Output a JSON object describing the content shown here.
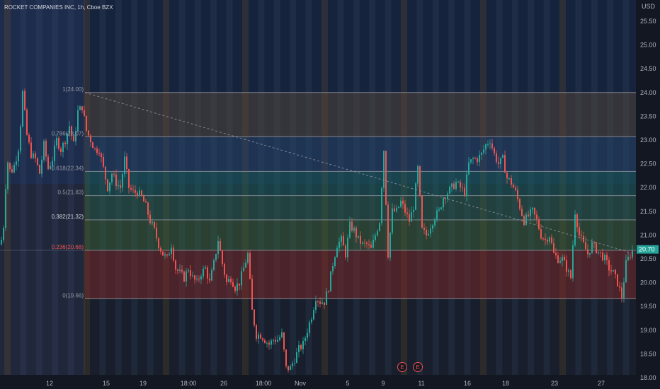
{
  "header": {
    "title": "ROCKET COMPANIES INC, 1h, Cboe BZX",
    "currency": "USD"
  },
  "colors": {
    "background": "#131722",
    "up": "#26a69a",
    "down": "#ef5350",
    "fib_line": "#9598a1",
    "trend": "#9598a1",
    "price_tag": "#26a69a"
  },
  "chart_data": {
    "type": "candlestick",
    "title": "ROCKET COMPANIES INC, 1h, Cboe BZX",
    "ylabel": "USD",
    "ylim": [
      18.0,
      25.8
    ],
    "y_ticks": [
      "25.50",
      "25.00",
      "24.50",
      "24.00",
      "23.50",
      "23.00",
      "22.50",
      "22.00",
      "21.50",
      "21.00",
      "20.50",
      "20.00",
      "19.50",
      "19.00",
      "18.50",
      "18.00"
    ],
    "x_ticks": [
      "12",
      "15",
      "19",
      "18:00",
      "26",
      "18:00",
      "Nov",
      "5",
      "9",
      "11",
      "16",
      "18",
      "23",
      "27"
    ],
    "last_price": "20.70",
    "fib_levels": [
      {
        "label": "1(24.00)",
        "value": 24.0
      },
      {
        "label": "0.786(23.07)",
        "value": 23.07
      },
      {
        "label": "0.618(22.34)",
        "value": 22.34
      },
      {
        "label": "0.5(21.83)",
        "value": 21.83
      },
      {
        "label": "0.382(21.32)",
        "value": 21.32
      },
      {
        "label": "0.236(20.68)",
        "value": 20.68
      },
      {
        "label": "0(19.66)",
        "value": 19.66
      }
    ],
    "earnings_markers": [
      "E",
      "E"
    ],
    "price_path": [
      [
        0,
        20.8
      ],
      [
        4,
        21.2
      ],
      [
        9,
        22.6
      ],
      [
        14,
        22.3
      ],
      [
        20,
        22.5
      ],
      [
        26,
        22.9
      ],
      [
        31,
        24.0
      ],
      [
        37,
        23.1
      ],
      [
        43,
        22.7
      ],
      [
        49,
        22.6
      ],
      [
        55,
        22.3
      ],
      [
        61,
        22.9
      ],
      [
        67,
        22.4
      ],
      [
        73,
        22.6
      ],
      [
        79,
        23.0
      ],
      [
        85,
        22.8
      ],
      [
        91,
        23.0
      ],
      [
        97,
        23.3
      ],
      [
        103,
        22.9
      ],
      [
        109,
        23.6
      ],
      [
        115,
        23.7
      ],
      [
        121,
        23.2
      ],
      [
        127,
        23.0
      ],
      [
        133,
        22.8
      ],
      [
        139,
        22.8
      ],
      [
        145,
        22.4
      ],
      [
        151,
        22.0
      ],
      [
        157,
        22.3
      ],
      [
        163,
        22.1
      ],
      [
        169,
        22.0
      ],
      [
        175,
        22.6
      ],
      [
        181,
        22.0
      ],
      [
        187,
        21.9
      ],
      [
        193,
        21.9
      ],
      [
        199,
        21.8
      ],
      [
        205,
        21.6
      ],
      [
        211,
        21.3
      ],
      [
        217,
        21.1
      ],
      [
        223,
        20.8
      ],
      [
        229,
        20.6
      ],
      [
        235,
        20.5
      ],
      [
        241,
        20.8
      ],
      [
        247,
        20.3
      ],
      [
        253,
        20.2
      ],
      [
        259,
        20.1
      ],
      [
        265,
        20.3
      ],
      [
        271,
        20.1
      ],
      [
        277,
        20.0
      ],
      [
        283,
        20.2
      ],
      [
        289,
        20.3
      ],
      [
        295,
        20.0
      ],
      [
        301,
        20.4
      ],
      [
        307,
        20.9
      ],
      [
        313,
        20.4
      ],
      [
        319,
        20.0
      ],
      [
        325,
        20.1
      ],
      [
        331,
        19.9
      ],
      [
        337,
        20.0
      ],
      [
        343,
        20.3
      ],
      [
        349,
        20.6
      ],
      [
        355,
        19.4
      ],
      [
        361,
        18.9
      ],
      [
        367,
        18.9
      ],
      [
        373,
        18.8
      ],
      [
        379,
        18.7
      ],
      [
        385,
        18.8
      ],
      [
        391,
        18.8
      ],
      [
        397,
        18.9
      ],
      [
        403,
        18.2
      ],
      [
        409,
        18.2
      ],
      [
        415,
        18.4
      ],
      [
        421,
        18.6
      ],
      [
        427,
        18.7
      ],
      [
        433,
        19.0
      ],
      [
        439,
        19.3
      ],
      [
        445,
        19.7
      ],
      [
        451,
        19.6
      ],
      [
        457,
        19.6
      ],
      [
        463,
        19.9
      ],
      [
        469,
        20.4
      ],
      [
        475,
        20.8
      ],
      [
        481,
        20.9
      ],
      [
        487,
        20.6
      ],
      [
        493,
        21.2
      ],
      [
        499,
        21.1
      ],
      [
        505,
        20.9
      ],
      [
        511,
        20.8
      ],
      [
        517,
        20.8
      ],
      [
        523,
        20.7
      ],
      [
        529,
        21.0
      ],
      [
        535,
        21.3
      ],
      [
        541,
        22.8
      ],
      [
        547,
        20.6
      ],
      [
        553,
        21.5
      ],
      [
        559,
        21.5
      ],
      [
        565,
        21.7
      ],
      [
        571,
        21.5
      ],
      [
        577,
        21.3
      ],
      [
        583,
        21.6
      ],
      [
        589,
        22.4
      ],
      [
        595,
        21.1
      ],
      [
        601,
        21.0
      ],
      [
        607,
        21.2
      ],
      [
        613,
        21.4
      ],
      [
        619,
        21.5
      ],
      [
        625,
        21.8
      ],
      [
        631,
        21.9
      ],
      [
        637,
        22.0
      ],
      [
        643,
        22.1
      ],
      [
        649,
        22.0
      ],
      [
        655,
        21.9
      ],
      [
        661,
        22.5
      ],
      [
        667,
        22.6
      ],
      [
        673,
        22.6
      ],
      [
        679,
        22.7
      ],
      [
        685,
        22.9
      ],
      [
        691,
        23.0
      ],
      [
        697,
        22.7
      ],
      [
        703,
        22.5
      ],
      [
        709,
        22.6
      ],
      [
        715,
        22.2
      ],
      [
        721,
        22.1
      ],
      [
        727,
        21.9
      ],
      [
        733,
        21.6
      ],
      [
        739,
        21.3
      ],
      [
        745,
        21.4
      ],
      [
        751,
        21.5
      ],
      [
        757,
        21.3
      ],
      [
        763,
        21.0
      ],
      [
        769,
        20.9
      ],
      [
        775,
        21.0
      ],
      [
        781,
        20.6
      ],
      [
        787,
        20.5
      ],
      [
        793,
        20.5
      ],
      [
        799,
        20.3
      ],
      [
        805,
        20.1
      ],
      [
        811,
        21.5
      ],
      [
        817,
        21.0
      ],
      [
        823,
        20.8
      ],
      [
        829,
        20.6
      ],
      [
        835,
        20.8
      ],
      [
        841,
        20.7
      ],
      [
        847,
        20.6
      ],
      [
        853,
        20.5
      ],
      [
        859,
        20.3
      ],
      [
        865,
        20.2
      ],
      [
        871,
        20.0
      ],
      [
        877,
        19.7
      ],
      [
        883,
        20.4
      ],
      [
        889,
        20.6
      ],
      [
        893,
        20.7
      ]
    ]
  }
}
